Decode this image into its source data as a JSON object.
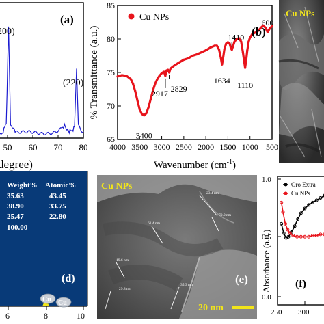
{
  "panels": {
    "a": {
      "label": "(a)",
      "peak_labels": [
        "200)",
        "(220)"
      ],
      "x_ticks": [
        "50",
        "60",
        "70",
        "80"
      ],
      "xlabel_fragment": "degree)"
    },
    "b": {
      "label": "(b)",
      "legend": "Cu NPs",
      "ylabel": "% Transmittance (a.u.)",
      "xlabel": "Wavenumber (cm",
      "xlabel_sup": "-1",
      "xlabel_close": ")",
      "peak_labels": [
        "3400",
        "2917",
        "2829",
        "1634",
        "1410",
        "1110",
        "600"
      ]
    },
    "c": {
      "label": "Cu NPs"
    },
    "d": {
      "headers": [
        "Weight%",
        "Atomic%"
      ],
      "rows": [
        [
          "35.63",
          "43.45"
        ],
        [
          "38.90",
          "33.75"
        ],
        [
          "25.47",
          "22.80"
        ]
      ],
      "total": "100.00",
      "label": "(d)",
      "peak_labels": [
        "Cu",
        "Cu"
      ],
      "x_ticks": [
        "6",
        "8",
        "10"
      ]
    },
    "e": {
      "label": "Cu NPs",
      "panel_label": "(e)",
      "scale_bar": "20 nm",
      "measurements": [
        "23.4 nm",
        "70.0 nm",
        "61.4 nm",
        "19.6 nm",
        "29.8 nm",
        "35.3 nm"
      ]
    },
    "f": {
      "label": "(f)",
      "ylabel": "Absorbance (a.u.)",
      "legend": [
        "Oro Extra",
        "Cu NPs"
      ],
      "y_ticks": [
        "0.0",
        "0.5",
        "1.0"
      ],
      "x_ticks": [
        "250",
        "300"
      ]
    }
  },
  "chart_data": [
    {
      "type": "line",
      "title": "",
      "xlabel": "Wavenumber (cm-1)",
      "ylabel": "% Transmittance (a.u.)",
      "xlim": [
        4000,
        500
      ],
      "ylim": [
        65,
        85
      ],
      "x_ticks": [
        4000,
        3500,
        3000,
        2500,
        2000,
        1500,
        1000,
        500
      ],
      "y_ticks": [
        65,
        70,
        75,
        80,
        85
      ],
      "legend_position": "top-left",
      "series": [
        {
          "name": "Cu NPs",
          "color": "#e8141c",
          "x": [
            4000,
            3900,
            3800,
            3700,
            3650,
            3600,
            3550,
            3500,
            3450,
            3400,
            3350,
            3300,
            3250,
            3200,
            3150,
            3100,
            3050,
            3000,
            2950,
            2917,
            2890,
            2860,
            2829,
            2800,
            2700,
            2600,
            2500,
            2400,
            2300,
            2200,
            2100,
            2000,
            1900,
            1800,
            1750,
            1700,
            1660,
            1634,
            1610,
            1580,
            1540,
            1500,
            1460,
            1430,
            1410,
            1390,
            1350,
            1300,
            1250,
            1200,
            1160,
            1130,
            1110,
            1090,
            1060,
            1030,
            1000,
            950,
            900,
            850,
            800,
            750,
            700,
            650,
            600,
            550,
            500
          ],
          "y": [
            74.4,
            74.6,
            74.5,
            74.0,
            73.3,
            72.2,
            70.8,
            69.5,
            68.8,
            68.6,
            68.9,
            69.8,
            71.0,
            72.3,
            73.3,
            74.0,
            74.5,
            74.9,
            75.1,
            74.5,
            75.3,
            75.4,
            75.0,
            75.6,
            76.1,
            76.5,
            76.9,
            77.1,
            77.5,
            77.7,
            78.0,
            78.3,
            78.7,
            79.0,
            79.0,
            78.4,
            77.2,
            76.2,
            77.1,
            78.5,
            79.3,
            79.5,
            79.3,
            78.6,
            78.4,
            78.8,
            79.6,
            80.0,
            80.1,
            79.6,
            78.0,
            76.6,
            75.7,
            76.6,
            78.3,
            79.6,
            80.2,
            80.7,
            80.9,
            81.0,
            81.3,
            81.7,
            82.0,
            81.7,
            81.0,
            81.6,
            81.9
          ]
        }
      ]
    },
    {
      "type": "line",
      "title": "",
      "xlabel": "degree",
      "ylabel": "",
      "xlim": [
        40,
        80
      ],
      "x_ticks": [
        50,
        60,
        70,
        80
      ],
      "series": [
        {
          "name": "",
          "color": "#1a1ad0",
          "x": [
            40,
            43,
            46,
            48,
            49.5,
            50.4,
            51.2,
            53,
            56,
            60,
            63,
            66,
            69,
            71,
            72.5,
            73.5,
            75,
            76.5,
            77.3,
            78,
            79,
            80
          ],
          "y": [
            0.02,
            0.02,
            0.03,
            0.04,
            0.12,
            1.0,
            0.1,
            0.05,
            0.04,
            0.03,
            0.03,
            0.04,
            0.05,
            0.07,
            0.1,
            0.06,
            0.05,
            0.08,
            0.62,
            0.1,
            0.06,
            0.05
          ]
        }
      ]
    },
    {
      "type": "line",
      "title": "",
      "xlabel": "",
      "ylabel": "Absorbance (a.u.)",
      "xlim": [
        250,
        320
      ],
      "ylim": [
        0.0,
        1.1
      ],
      "x_ticks": [
        250,
        300
      ],
      "y_ticks": [
        0.0,
        0.5,
        1.0
      ],
      "legend_position": "top-left",
      "series": [
        {
          "name": "Oro Extra",
          "color": "#000000",
          "x": [
            255,
            258,
            261,
            264,
            268,
            272,
            276,
            280,
            285,
            290,
            295,
            300,
            305,
            310,
            315,
            320
          ],
          "y": [
            0.62,
            0.54,
            0.5,
            0.51,
            0.55,
            0.6,
            0.66,
            0.71,
            0.75,
            0.78,
            0.8,
            0.82,
            0.84,
            0.86,
            0.88,
            0.89
          ]
        },
        {
          "name": "Cu NPs",
          "color": "#e8141c",
          "x": [
            255,
            257,
            260,
            263,
            266,
            270,
            275,
            280,
            285,
            290,
            295,
            300,
            305,
            310,
            315,
            320
          ],
          "y": [
            0.8,
            0.72,
            0.62,
            0.57,
            0.54,
            0.52,
            0.51,
            0.51,
            0.51,
            0.51,
            0.52,
            0.52,
            0.53,
            0.53,
            0.54,
            0.54
          ]
        }
      ]
    }
  ]
}
